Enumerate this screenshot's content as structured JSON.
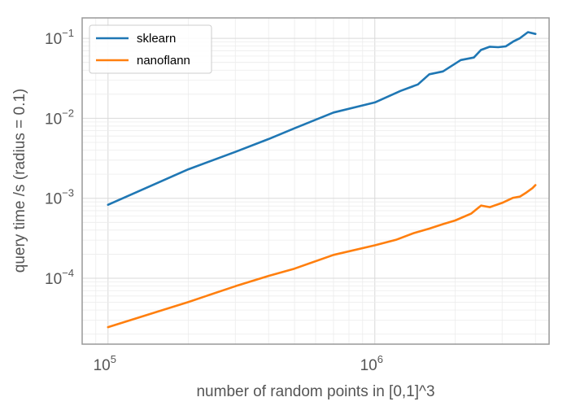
{
  "chart_data": {
    "type": "line",
    "xlabel": "number of random points in [0,1]^3",
    "ylabel": "query time /s (radius = 0.1)",
    "xscale": "log",
    "yscale": "log",
    "xlim": [
      80000,
      4500000
    ],
    "ylim": [
      1.5e-05,
      0.18
    ],
    "x_ticks": [
      {
        "base": "10",
        "exp": "5",
        "value": 100000
      },
      {
        "base": "10",
        "exp": "6",
        "value": 1000000
      }
    ],
    "y_ticks": [
      {
        "base": "10",
        "exp": "−4",
        "value": 0.0001
      },
      {
        "base": "10",
        "exp": "−3",
        "value": 0.001
      },
      {
        "base": "10",
        "exp": "−2",
        "value": 0.01
      },
      {
        "base": "10",
        "exp": "−1",
        "value": 0.1
      }
    ],
    "grid": "major and minor",
    "legend": "top-left",
    "series": [
      {
        "name": "sklearn",
        "color": "#1f77b4",
        "x": [
          100000,
          200000,
          300000,
          400000,
          500000,
          700000,
          1000000,
          1250000,
          1450000,
          1600000,
          1800000,
          2100000,
          2350000,
          2500000,
          2700000,
          2900000,
          3100000,
          3300000,
          3500000,
          3750000,
          4000000
        ],
        "y": [
          0.00083,
          0.0023,
          0.0038,
          0.0055,
          0.0075,
          0.0118,
          0.0158,
          0.022,
          0.0265,
          0.0355,
          0.0385,
          0.0535,
          0.0575,
          0.0715,
          0.0785,
          0.0775,
          0.0795,
          0.091,
          0.1005,
          0.1195,
          0.1135
        ]
      },
      {
        "name": "nanoflann",
        "color": "#ff7f0e",
        "x": [
          100000,
          200000,
          300000,
          400000,
          500000,
          700000,
          1000000,
          1200000,
          1400000,
          1600000,
          1800000,
          2000000,
          2300000,
          2500000,
          2700000,
          3000000,
          3300000,
          3500000,
          3700000,
          3900000,
          4000000
        ],
        "y": [
          2.45e-05,
          5.05e-05,
          7.95e-05,
          0.000107,
          0.000132,
          0.000196,
          0.000258,
          0.000302,
          0.000367,
          0.000417,
          0.000475,
          0.000528,
          0.000645,
          0.00081,
          0.000775,
          0.000875,
          0.001015,
          0.00105,
          0.00118,
          0.00134,
          0.00146
        ]
      }
    ]
  }
}
